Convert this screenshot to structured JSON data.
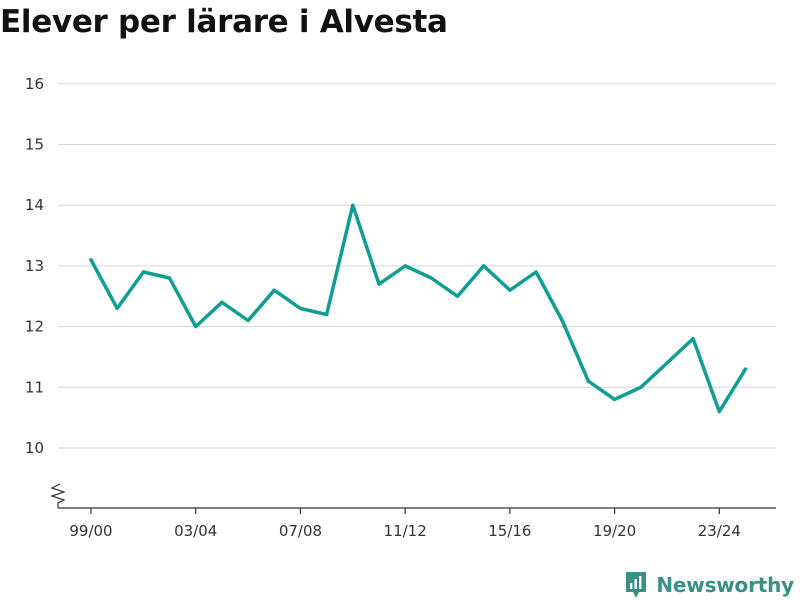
{
  "chart_data": {
    "type": "line",
    "title": "Elever per lärare i Alvesta",
    "xlabel": "",
    "ylabel": "",
    "x": [
      "99/00",
      "00/01",
      "01/02",
      "02/03",
      "03/04",
      "04/05",
      "05/06",
      "06/07",
      "07/08",
      "08/09",
      "09/10",
      "10/11",
      "11/12",
      "12/13",
      "13/14",
      "14/15",
      "15/16",
      "16/17",
      "17/18",
      "18/19",
      "19/20",
      "20/21",
      "21/22",
      "22/23",
      "23/24",
      "24/25"
    ],
    "x_tick_labels": [
      "99/00",
      "03/04",
      "07/08",
      "11/12",
      "15/16",
      "19/20",
      "23/24"
    ],
    "y_ticks": [
      10,
      11,
      12,
      13,
      14,
      15,
      16
    ],
    "ylim": [
      9,
      16
    ],
    "axis_break": true,
    "grid": true,
    "series": [
      {
        "values": [
          13.1,
          12.3,
          12.9,
          12.8,
          12.0,
          12.4,
          12.1,
          12.6,
          12.3,
          12.2,
          14.0,
          12.7,
          13.0,
          12.8,
          12.5,
          13.0,
          12.6,
          12.9,
          12.1,
          11.1,
          10.8,
          11.0,
          11.4,
          11.8,
          10.6,
          11.3
        ],
        "color": "#0e9e94"
      }
    ]
  },
  "brand": {
    "name": "Newsworthy",
    "icon": "newsworthy-logo-icon",
    "color": "#3a8f88"
  }
}
